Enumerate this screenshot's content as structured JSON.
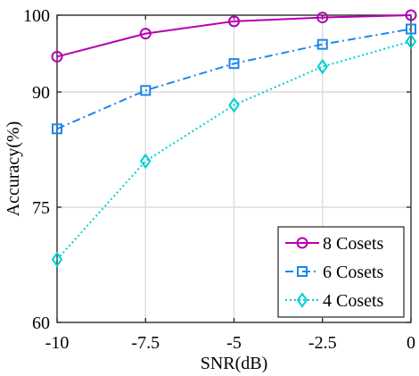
{
  "chart_data": {
    "type": "line",
    "xlabel": "SNR(dB)",
    "ylabel": "Accuracy(%)",
    "xlim": [
      -10,
      0
    ],
    "ylim": [
      60,
      100
    ],
    "x": [
      -10,
      -7.5,
      -5,
      -2.5,
      0
    ],
    "xticks": [
      -10,
      -7.5,
      -5,
      -2.5,
      0
    ],
    "xtick_labels": [
      "-10",
      "-7.5",
      "-5",
      "-2.5",
      "0"
    ],
    "yticks": [
      60,
      75,
      90,
      100
    ],
    "ytick_labels": [
      "60",
      "75",
      "90",
      "100"
    ],
    "grid": true,
    "legend_position": "bottom-right",
    "series": [
      {
        "name": "8 Cosets",
        "values": [
          94.6,
          97.6,
          99.2,
          99.7,
          100.0
        ],
        "color": "#b400b4",
        "line_style": "solid",
        "marker": "circle"
      },
      {
        "name": "6 Cosets",
        "values": [
          85.2,
          90.2,
          93.7,
          96.2,
          98.2
        ],
        "color": "#1c86ee",
        "line_style": "dashdot",
        "marker": "square"
      },
      {
        "name": "4 Cosets",
        "values": [
          68.2,
          81.0,
          88.3,
          93.3,
          96.6
        ],
        "color": "#00d0d0",
        "line_style": "dotted",
        "marker": "diamond"
      }
    ]
  }
}
